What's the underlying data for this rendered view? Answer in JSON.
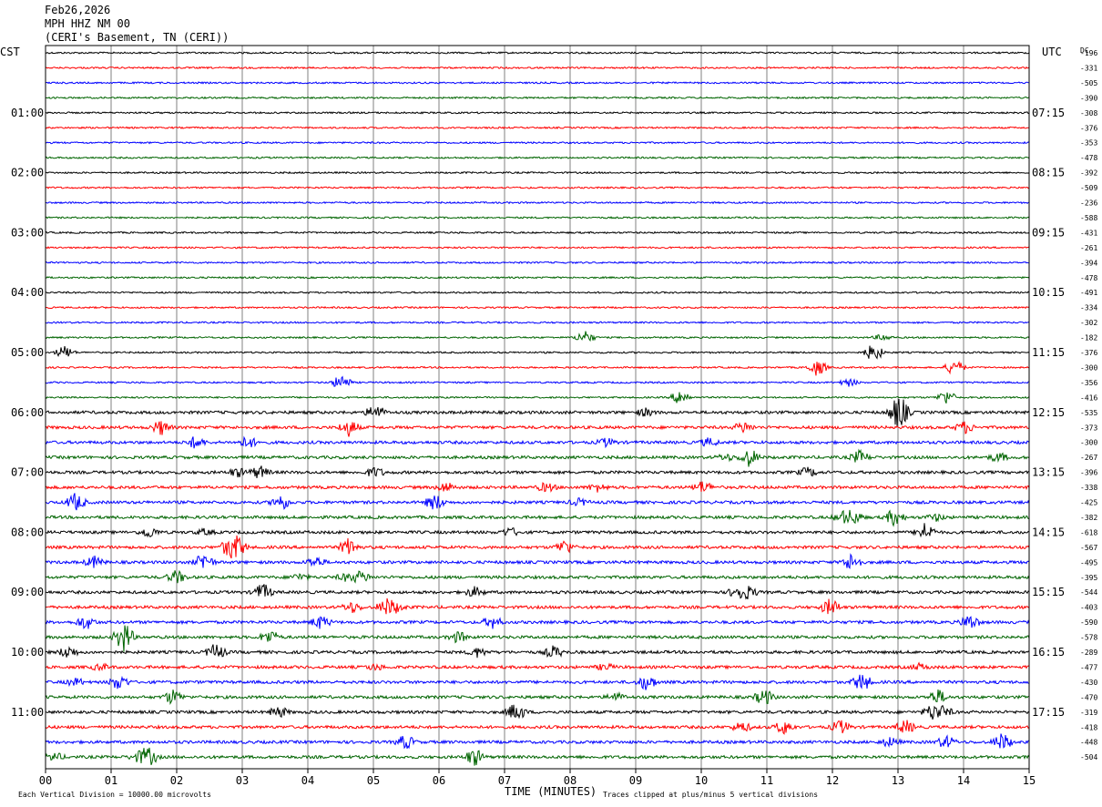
{
  "header": {
    "date": "Feb26,2026",
    "station": "MPH HHZ NM 00",
    "location": "(CERI's Basement, TN (CERI))"
  },
  "labels": {
    "left_zone": "CST",
    "right_zone": "UTC",
    "dc_header": "DC",
    "xlabel": "TIME (MINUTES)",
    "footer_left": "Each Vertical Division = 10000.00 microvolts",
    "footer_right": "Traces clipped at plus/minus 5 vertical divisions"
  },
  "colors": {
    "trace_cycle": [
      "#000000",
      "#ff0000",
      "#0000ff",
      "#006400"
    ],
    "grid": "#808080"
  },
  "chart_data": {
    "type": "line",
    "title": "MPH HHZ NM 00",
    "xlabel": "TIME (MINUTES)",
    "x_ticks": [
      "00",
      "01",
      "02",
      "03",
      "04",
      "05",
      "06",
      "07",
      "08",
      "09",
      "10",
      "11",
      "12",
      "13",
      "14",
      "15"
    ],
    "xlim": [
      0,
      15
    ],
    "row_count": 48,
    "minutes_per_row": 15,
    "left_hour_labels": [
      "01:00",
      "02:00",
      "03:00",
      "04:00",
      "05:00",
      "06:00",
      "07:00",
      "08:00",
      "09:00",
      "10:00",
      "11:00"
    ],
    "right_hour_labels": [
      "07:15",
      "08:15",
      "09:15",
      "10:15",
      "11:15",
      "12:15",
      "13:15",
      "14:15",
      "15:15",
      "16:15",
      "17:15"
    ],
    "dc_offsets": [
      "-196",
      "-331",
      "-505",
      "-390",
      "-308",
      "-376",
      "-353",
      "-478",
      "-392",
      "-509",
      "-236",
      "-588",
      "-431",
      "-261",
      "-394",
      "-478",
      "-491",
      "-334",
      "-302",
      "-182",
      "-376",
      "-300",
      "-356",
      "-416",
      "-535",
      "-373",
      "-300",
      "-267",
      "-396",
      "-338",
      "-425",
      "-382",
      "-618",
      "-567",
      "-495",
      "-395",
      "-544",
      "-403",
      "-590",
      "-578",
      "-289",
      "-477",
      "-430",
      "-470",
      "-319",
      "-418",
      "-448",
      "-504"
    ]
  }
}
